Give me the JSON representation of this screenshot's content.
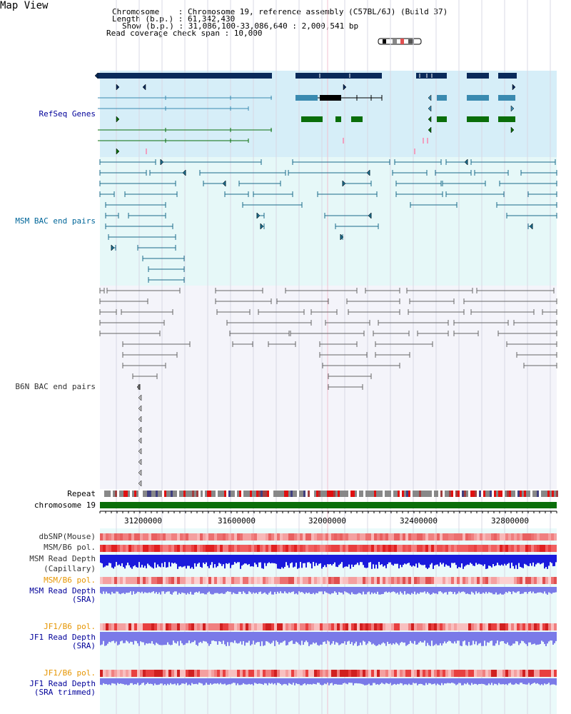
{
  "header": {
    "title": "Map View",
    "info_lines": [
      "Chromosome    : Chromosome 19, reference assembly (C57BL/6J) (Build 37)",
      "Length (b.p.) : 61,342,430",
      "Show (b.p.) : 31,086,100-33,086,640 : 2,000,541 bp",
      "Read coverage check span : 10,000"
    ]
  },
  "tracks": {
    "refseq": "RefSeq Genes",
    "msm_bac": "MSM BAC end pairs",
    "b6n_bac": "B6N BAC end pairs",
    "repeat": "Repeat",
    "chromosome": "chromosome 19",
    "dbsnp": "dbSNP(Mouse)",
    "msm_b6_pol_1": "MSM/B6 pol.",
    "msm_read_cap_1": "MSM Read Depth",
    "msm_read_cap_2": "(Capillary)",
    "msm_b6_pol_2": "MSM/B6 pol.",
    "msm_read_sra_1": "MSM Read Depth",
    "msm_read_sra_2": "(SRA)",
    "jf1_b6_pol_1": "JF1/B6 pol.",
    "jf1_read_sra_1": "JF1 Read Depth",
    "jf1_read_sra_2": "(SRA)",
    "jf1_b6_pol_2": "JF1/B6 pol.",
    "jf1_read_trim_1": "JF1 Read Depth",
    "jf1_read_trim_2": "(SRA trimmed)"
  },
  "axis": {
    "ticks": [
      "31200000",
      "31600000",
      "32000000",
      "32400000",
      "32800000"
    ]
  },
  "colors": {
    "refseq_bg": "#d6eef8",
    "msm_bg": "#e6f8f8",
    "b6n_bg": "#f4f4fa",
    "gene_dark": "#0a2a5a",
    "gene_mid": "#3a8ab0",
    "gene_green": "#0a6e0a",
    "bac_teal": "#1a6a8a",
    "bac_gray": "#666666",
    "chrom_green": "#0a6e0a",
    "depth_blue": "#1a1adc",
    "depth_light": "#7a7ae8"
  }
}
